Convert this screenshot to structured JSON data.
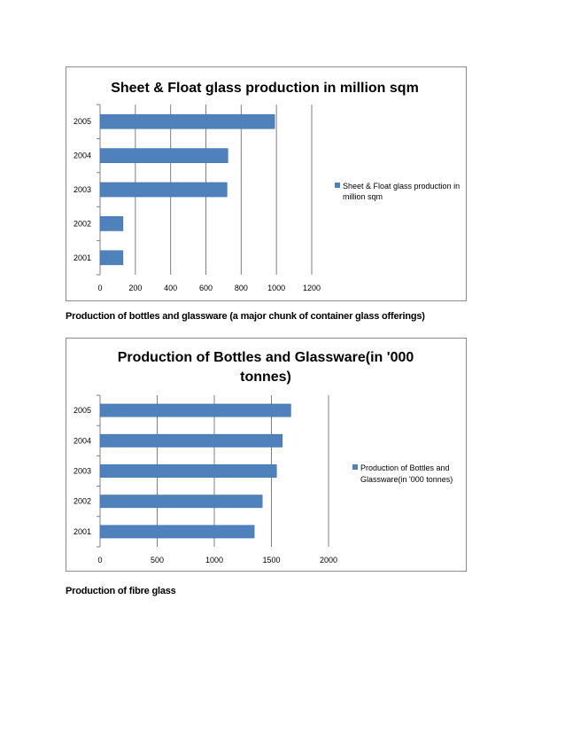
{
  "chart_data": [
    {
      "type": "bar",
      "orientation": "horizontal",
      "title": "Sheet & Float glass production in million sqm",
      "categories": [
        "2001",
        "2002",
        "2003",
        "2004",
        "2005"
      ],
      "series": [
        {
          "name": "Sheet & Float glass production in million sqm",
          "values": [
            130,
            130,
            720,
            725,
            990
          ]
        }
      ],
      "xlim": [
        0,
        1200
      ],
      "xticks": [
        "0",
        "200",
        "400",
        "600",
        "800",
        "1000",
        "1200"
      ],
      "grid": "vertical",
      "legend": "right",
      "color": "#4f81bd"
    },
    {
      "type": "bar",
      "orientation": "horizontal",
      "title": "Production of Bottles and Glassware(in '000 tonnes)",
      "categories": [
        "2001",
        "2002",
        "2003",
        "2004",
        "2005"
      ],
      "series": [
        {
          "name": "Production of Bottles and Glassware(in '000 tonnes)",
          "values": [
            1350,
            1420,
            1545,
            1595,
            1670
          ]
        }
      ],
      "xlim": [
        0,
        2000
      ],
      "xticks": [
        "0",
        "500",
        "1000",
        "1500",
        "2000"
      ],
      "grid": "vertical",
      "legend": "right",
      "color": "#4f81bd"
    }
  ],
  "captions": {
    "bottles": "Production of bottles and glassware (a major chunk of container glass offerings)",
    "fibre": "Production of fibre glass"
  }
}
